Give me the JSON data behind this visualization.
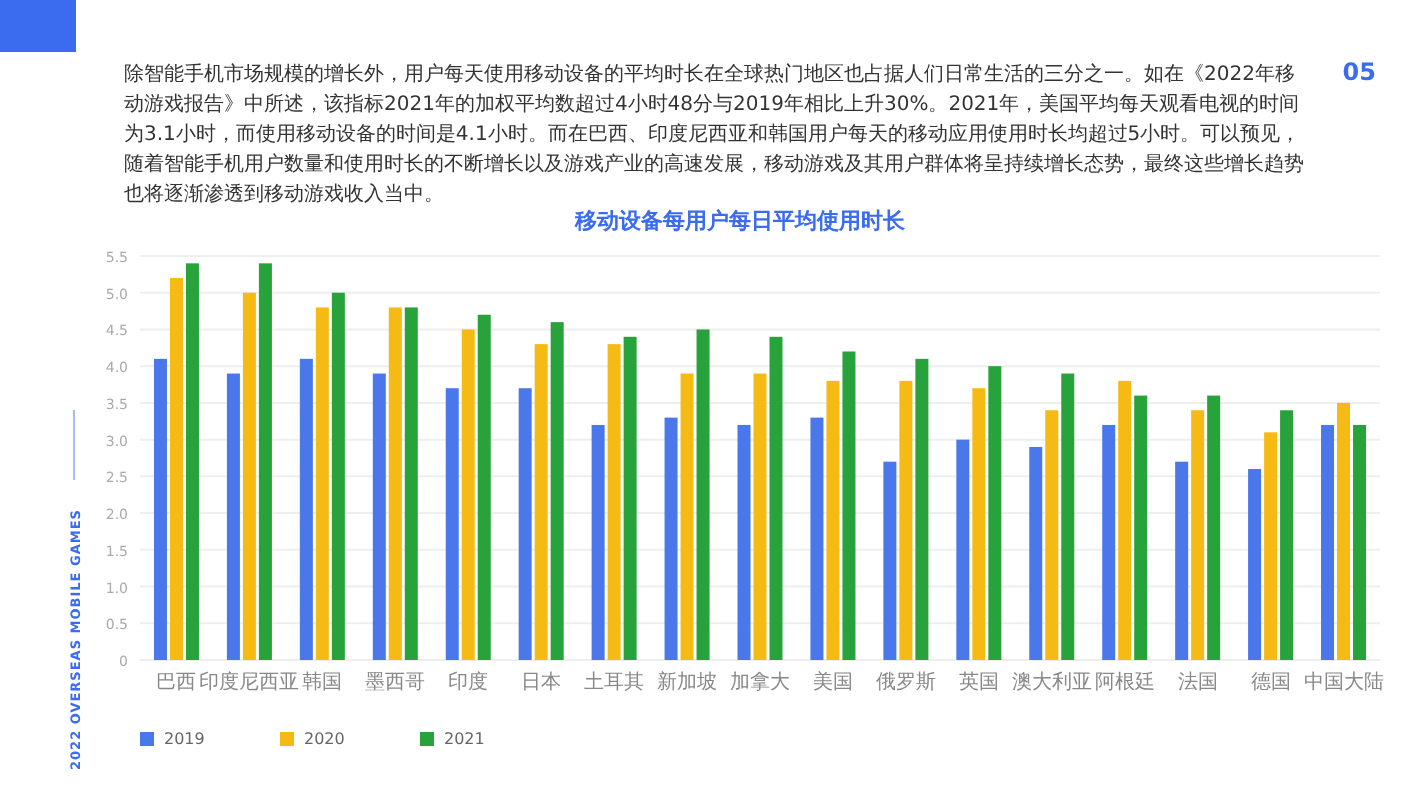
{
  "chart_data": {
    "type": "bar",
    "title": "移动设备每用户每日平均使用时长",
    "categories": [
      "巴西",
      "印度尼西亚",
      "韩国",
      "墨西哥",
      "印度",
      "日本",
      "土耳其",
      "新加坡",
      "加拿大",
      "美国",
      "俄罗斯",
      "英国",
      "澳大利亚",
      "阿根廷",
      "法国",
      "德国",
      "中国大陆"
    ],
    "series": [
      {
        "name": "2019",
        "color": "#4a78ea",
        "values": [
          4.1,
          3.9,
          4.1,
          3.9,
          3.7,
          3.7,
          3.2,
          3.3,
          3.2,
          3.3,
          2.7,
          3.0,
          2.9,
          3.2,
          2.7,
          2.6,
          3.2
        ]
      },
      {
        "name": "2020",
        "color": "#f5bb14",
        "values": [
          5.2,
          5.0,
          4.8,
          4.8,
          4.5,
          4.3,
          4.3,
          3.9,
          3.9,
          3.8,
          3.8,
          3.7,
          3.4,
          3.8,
          3.4,
          3.1,
          3.5
        ]
      },
      {
        "name": "2021",
        "color": "#28a33c",
        "values": [
          5.4,
          5.4,
          5.0,
          4.8,
          4.7,
          4.6,
          4.4,
          4.5,
          4.4,
          4.2,
          4.1,
          4.0,
          3.9,
          3.6,
          3.6,
          3.4,
          3.2
        ]
      }
    ],
    "ylim": [
      0,
      5.5
    ],
    "yticks": [
      0,
      {
        "value": 0.5,
        "label": "0.5"
      },
      {
        "value": 1,
        "label": "1.0"
      },
      {
        "value": 1.5,
        "label": "1.5"
      },
      {
        "value": 2,
        "label": "2.0"
      },
      {
        "value": 2.5,
        "label": "2.5"
      },
      {
        "value": 3,
        "label": "3.0"
      },
      {
        "value": 3.5,
        "label": "3.5"
      },
      {
        "value": 4,
        "label": "4.0"
      },
      {
        "value": 4.5,
        "label": "4.5"
      },
      {
        "value": 5,
        "label": "5.0"
      },
      {
        "value": 5.5,
        "label": "5.5"
      }
    ],
    "grid": "y",
    "legend": "bottom left",
    "annotations": [
      "05",
      "2022 OVERSEAS MOBILE GAMES",
      "除智能手机市场规模的增长外，用户每天使用移动设备的平均时长在全球热门地区也占据人们日常生活的三分之一。如在《2022年移动游戏报告》中所述，该指标2021年的加权平均数超过4小时48分与2019年相比上升30%。2021年，美国平均每天观看电视的时间为3.1小时，而使用移动设备的时间是4.1小时。而在巴西、印度尼西亚和韩国用户每天的移动应用使用时长均超过5小时。可以预见，随着智能手机用户数量和使用时长的不断增长以及游戏产业的高速发展，移动游戏及其用户群体将呈持续增长态势，最终这些增长趋势也将逐渐渗透到移动游戏收入当中。"
    ]
  }
}
